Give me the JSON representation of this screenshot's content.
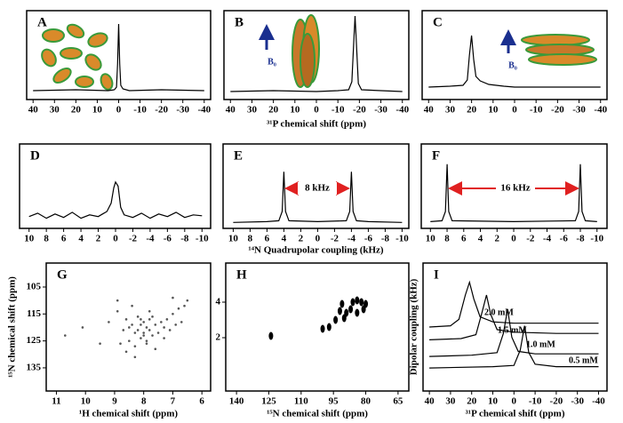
{
  "chart_data": [
    {
      "type": "line",
      "panel_label": "A",
      "xlim": [
        43,
        -43
      ],
      "xticks": [
        40,
        30,
        20,
        10,
        0,
        -10,
        -20,
        -30,
        -40
      ],
      "ylim": [
        0,
        100
      ],
      "series": [
        {
          "color": "#000000",
          "x": [
            40,
            20,
            5,
            2,
            1,
            0.5,
            0,
            -0.5,
            -1,
            -2,
            -5,
            -20,
            -40
          ],
          "values": [
            10,
            11,
            10,
            11,
            14,
            40,
            85,
            40,
            16,
            12,
            10,
            11,
            10
          ]
        }
      ]
    },
    {
      "type": "line",
      "panel_label": "B",
      "x_label": "³¹P chemical shift (ppm)",
      "annotations": [
        "B₀"
      ],
      "xlim": [
        43,
        -43
      ],
      "xticks": [
        40,
        30,
        20,
        10,
        0,
        -10,
        -20,
        -30,
        -40
      ],
      "ylim": [
        0,
        100
      ],
      "series": [
        {
          "color": "#000000",
          "x": [
            40,
            20,
            0,
            -10,
            -15,
            -16.5,
            -17.5,
            -18,
            -18.5,
            -19.5,
            -21,
            -30,
            -40
          ],
          "values": [
            9,
            10,
            9,
            10,
            11,
            20,
            70,
            94,
            70,
            18,
            11,
            10,
            9
          ]
        }
      ]
    },
    {
      "type": "line",
      "panel_label": "C",
      "annotations": [
        "B₀"
      ],
      "xlim": [
        43,
        -43
      ],
      "xticks": [
        40,
        30,
        20,
        10,
        0,
        -10,
        -20,
        -30,
        -40
      ],
      "ylim": [
        0,
        100
      ],
      "series": [
        {
          "color": "#000000",
          "x": [
            40,
            30,
            24,
            22,
            21,
            20,
            19,
            18,
            16,
            12,
            5,
            0,
            -20,
            -40
          ],
          "values": [
            14,
            15,
            16,
            22,
            50,
            72,
            45,
            26,
            21,
            17,
            15,
            14,
            14,
            14
          ]
        }
      ]
    },
    {
      "type": "line",
      "panel_label": "D",
      "xlim": [
        11.1,
        -11.0
      ],
      "xticks": [
        10,
        8,
        6,
        4,
        2,
        0,
        -2,
        -4,
        -6,
        -8,
        -10
      ],
      "ylim": [
        0,
        100
      ],
      "series": [
        {
          "color": "#000000",
          "x": [
            10,
            9,
            8,
            7,
            6,
            5,
            4,
            3,
            2,
            1.5,
            1,
            0.5,
            0.2,
            0,
            -0.3,
            -0.6,
            -1,
            -2,
            -3,
            -4,
            -5,
            -6,
            -7,
            -8,
            -9,
            -10
          ],
          "values": [
            14,
            18,
            12,
            17,
            13,
            19,
            12,
            16,
            14,
            17,
            20,
            30,
            48,
            55,
            50,
            25,
            16,
            13,
            18,
            12,
            17,
            14,
            19,
            13,
            16,
            15
          ]
        }
      ]
    },
    {
      "type": "line",
      "panel_label": "E",
      "x_label": "¹⁴N Quadrupolar coupling (kHz)",
      "annotations": [
        "8 kHz"
      ],
      "xlim": [
        11.2,
        -10.8
      ],
      "xticks": [
        10,
        8,
        6,
        4,
        2,
        0,
        -2,
        -4,
        -6,
        -8,
        -10
      ],
      "ylim": [
        0,
        100
      ],
      "series": [
        {
          "color": "#000000",
          "x": [
            10,
            6,
            4.6,
            4.2,
            4,
            3.8,
            3.4,
            0,
            -3.4,
            -3.8,
            -4,
            -4.2,
            -4.6,
            -6,
            -10
          ],
          "values": [
            7,
            8,
            9,
            20,
            67,
            20,
            9,
            8,
            9,
            20,
            67,
            20,
            9,
            8,
            7
          ]
        }
      ]
    },
    {
      "type": "line",
      "panel_label": "F",
      "annotations": [
        "16 kHz"
      ],
      "xlim": [
        11.1,
        -11.2
      ],
      "xticks": [
        10,
        8,
        6,
        4,
        2,
        0,
        -2,
        -4,
        -6,
        -8,
        -10
      ],
      "ylim": [
        0,
        100
      ],
      "series": [
        {
          "color": "#000000",
          "x": [
            10,
            8.6,
            8.2,
            8,
            7.8,
            7.4,
            0,
            -7.4,
            -7.8,
            -8,
            -8.2,
            -8.6,
            -10
          ],
          "values": [
            8,
            9,
            20,
            76,
            20,
            9,
            8,
            9,
            20,
            76,
            20,
            9,
            8
          ]
        }
      ]
    },
    {
      "type": "scatter",
      "panel_label": "G",
      "x_label": "¹H chemical shift (ppm)",
      "y_label": "¹⁵N chemical shift (ppm)",
      "xlim": [
        11.35,
        5.7
      ],
      "xticks": [
        11,
        10,
        9,
        8,
        7,
        6
      ],
      "ylim": [
        143.6,
        96.1
      ],
      "yticks": [
        105,
        115,
        125,
        135
      ],
      "series": [
        {
          "color": "#555555",
          "x": [
            10.7,
            10.1,
            9.2,
            8.9,
            8.7,
            8.6,
            8.5,
            8.4,
            8.3,
            8.3,
            8.2,
            8.2,
            8.1,
            8.1,
            8.0,
            8.0,
            7.9,
            7.9,
            7.8,
            7.8,
            7.7,
            7.7,
            7.6,
            7.5,
            7.4,
            7.3,
            7.2,
            7.1,
            7.0,
            6.9,
            6.8,
            6.7,
            6.6,
            6.5,
            8.8,
            8.6,
            8.3,
            8.0,
            7.9,
            7.6,
            7.3,
            8.5,
            8.1,
            7.8,
            8.4,
            7.0,
            8.9,
            9.5
          ],
          "values": [
            123,
            120,
            118,
            114,
            121,
            117,
            125,
            119,
            122,
            127,
            116,
            121,
            124,
            119,
            118,
            122,
            120,
            126,
            117,
            121,
            123,
            116,
            119,
            122,
            118,
            120,
            117,
            121,
            115,
            119,
            113,
            118,
            112,
            110,
            126,
            129,
            131,
            123,
            125,
            128,
            124,
            120,
            117,
            114,
            112,
            109,
            110,
            126
          ]
        }
      ]
    },
    {
      "type": "scatter",
      "panel_label": "H",
      "x_label": "¹⁵N chemical shift (ppm)",
      "xlim": [
        145,
        60
      ],
      "xticks": [
        140,
        125,
        110,
        95,
        80,
        65
      ],
      "ylim": [
        -1,
        6.2
      ],
      "yticks": [
        2,
        4
      ],
      "series": [
        {
          "color": "#000000",
          "x": [
            124,
            100,
            97,
            94,
            92,
            91,
            89,
            87,
            86,
            84,
            82,
            81,
            84,
            90,
            80
          ],
          "values": [
            2.1,
            2.5,
            2.6,
            3.0,
            3.5,
            3.9,
            3.4,
            3.6,
            4.0,
            4.1,
            4.0,
            3.6,
            3.4,
            3.1,
            3.9
          ]
        }
      ]
    },
    {
      "type": "line",
      "panel_label": "I",
      "x_label": "³¹P chemical shift (ppm)",
      "y_label": "Dipolar coupling (kHz)",
      "xlim": [
        43,
        -44
      ],
      "xticks": [
        40,
        30,
        20,
        10,
        0,
        -10,
        -20,
        -30,
        -40
      ],
      "ylim": [
        0,
        100
      ],
      "series": [
        {
          "name": "2.0 mM",
          "color": "#000000",
          "x": [
            40,
            30,
            26,
            23,
            21,
            19,
            16,
            10,
            0,
            -20,
            -40
          ],
          "values": [
            50,
            51,
            56,
            75,
            85,
            72,
            58,
            54,
            53,
            53,
            53
          ]
        },
        {
          "name": "1.5 mM",
          "color": "#000000",
          "x": [
            40,
            25,
            18,
            15,
            13,
            11,
            8,
            0,
            -20,
            -40
          ],
          "values": [
            40,
            41,
            44,
            62,
            75,
            60,
            48,
            46,
            45,
            45
          ]
        },
        {
          "name": "1.0 mM",
          "color": "#000000",
          "x": [
            40,
            20,
            8,
            5,
            3,
            1,
            -2,
            -10,
            -40
          ],
          "values": [
            27,
            28,
            30,
            45,
            64,
            42,
            31,
            29,
            29
          ]
        },
        {
          "name": "0.5 mM",
          "color": "#000000",
          "x": [
            40,
            10,
            0,
            -3,
            -5,
            -7,
            -10,
            -20,
            -40
          ],
          "values": [
            18,
            19,
            20,
            32,
            51,
            30,
            21,
            19,
            19
          ]
        }
      ]
    }
  ]
}
